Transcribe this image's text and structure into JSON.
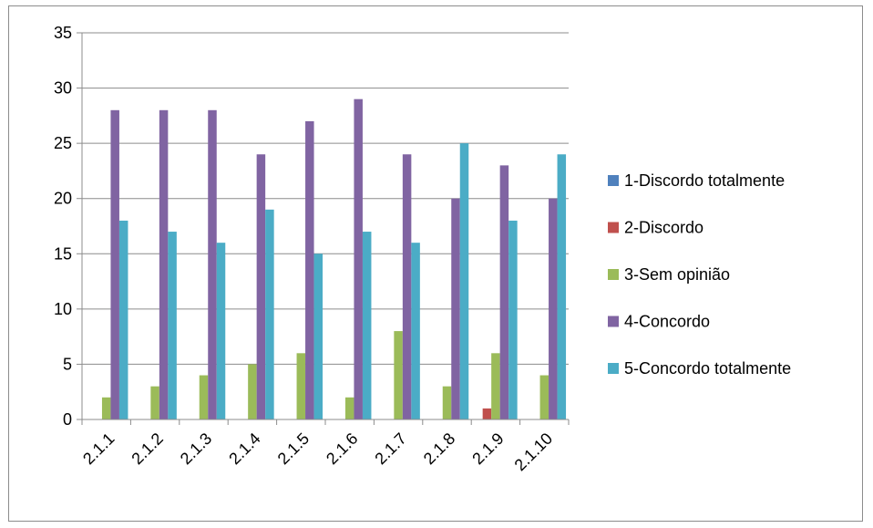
{
  "chart_data": {
    "type": "bar",
    "title": "",
    "xlabel": "",
    "ylabel": "",
    "ylim": [
      0,
      35
    ],
    "yticks": [
      0,
      5,
      10,
      15,
      20,
      25,
      30,
      35
    ],
    "grid": true,
    "legend_position": "right",
    "categories": [
      "2.1.1",
      "2.1.2",
      "2.1.3",
      "2.1.4",
      "2.1.5",
      "2.1.6",
      "2.1.7",
      "2.1.8",
      "2.1.9",
      "2.1.10"
    ],
    "series": [
      {
        "name": "1-Discordo totalmente",
        "color": "#4f81bd",
        "values": [
          0,
          0,
          0,
          0,
          0,
          0,
          0,
          0,
          0,
          0
        ]
      },
      {
        "name": "2-Discordo",
        "color": "#c0504d",
        "values": [
          0,
          0,
          0,
          0,
          0,
          0,
          0,
          0,
          1,
          0
        ]
      },
      {
        "name": "3-Sem opinião",
        "color": "#9bbb59",
        "values": [
          2,
          3,
          4,
          5,
          6,
          2,
          8,
          3,
          6,
          4
        ]
      },
      {
        "name": "4-Concordo",
        "color": "#8064a2",
        "values": [
          28,
          28,
          28,
          24,
          27,
          29,
          24,
          20,
          23,
          20
        ]
      },
      {
        "name": "5-Concordo totalmente",
        "color": "#4bacc6",
        "values": [
          18,
          17,
          16,
          19,
          15,
          17,
          16,
          25,
          18,
          24
        ]
      }
    ]
  }
}
